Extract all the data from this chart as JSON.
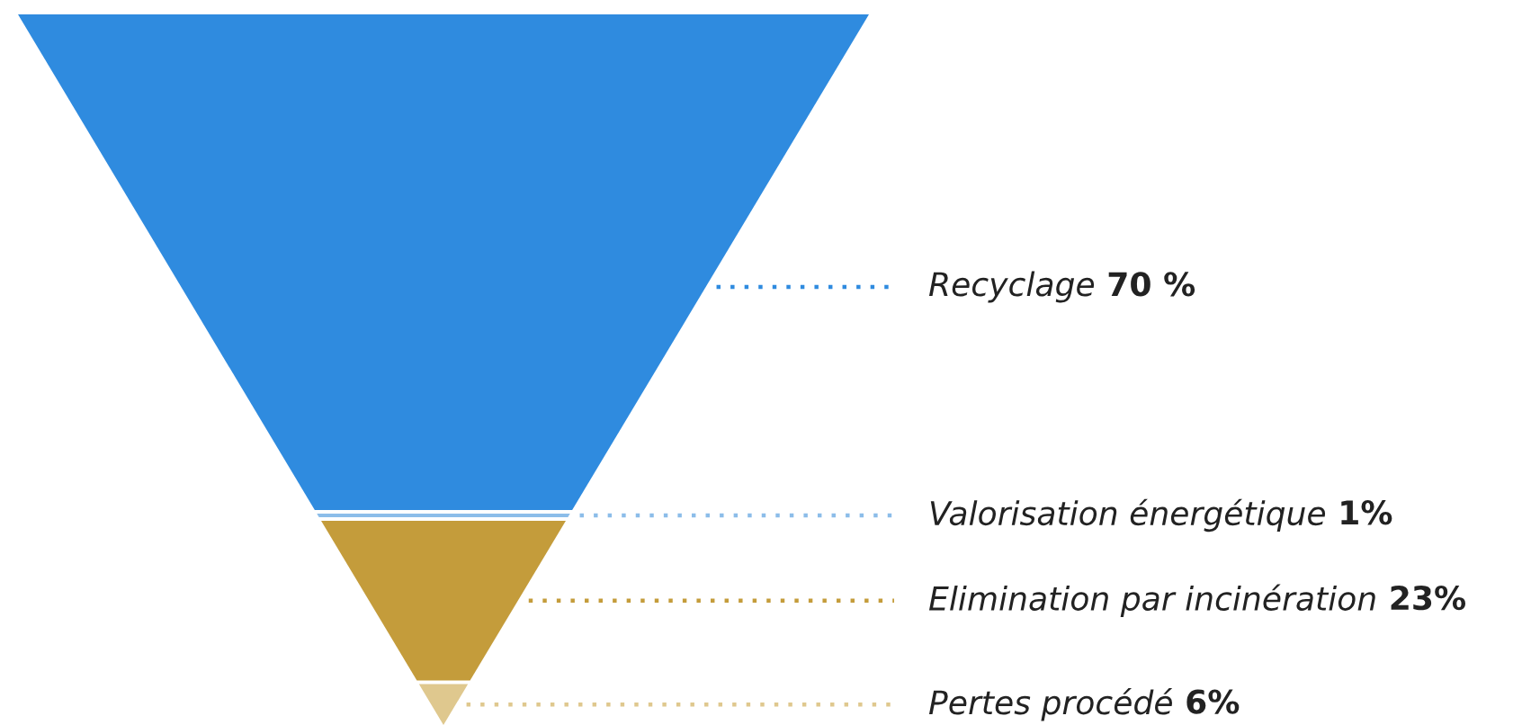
{
  "chart_data": {
    "type": "other",
    "categories": [
      "Recyclage",
      "Valorisation énergétique",
      "Elimination par incinération",
      "Pertes procédé"
    ],
    "values": [
      70,
      1,
      23,
      6
    ],
    "value_labels": [
      "70 %",
      "1%",
      "23%",
      "6%"
    ],
    "colors": [
      "#2f8bdf",
      "#8cbde9",
      "#c49c3b",
      "#dfc88e"
    ]
  }
}
